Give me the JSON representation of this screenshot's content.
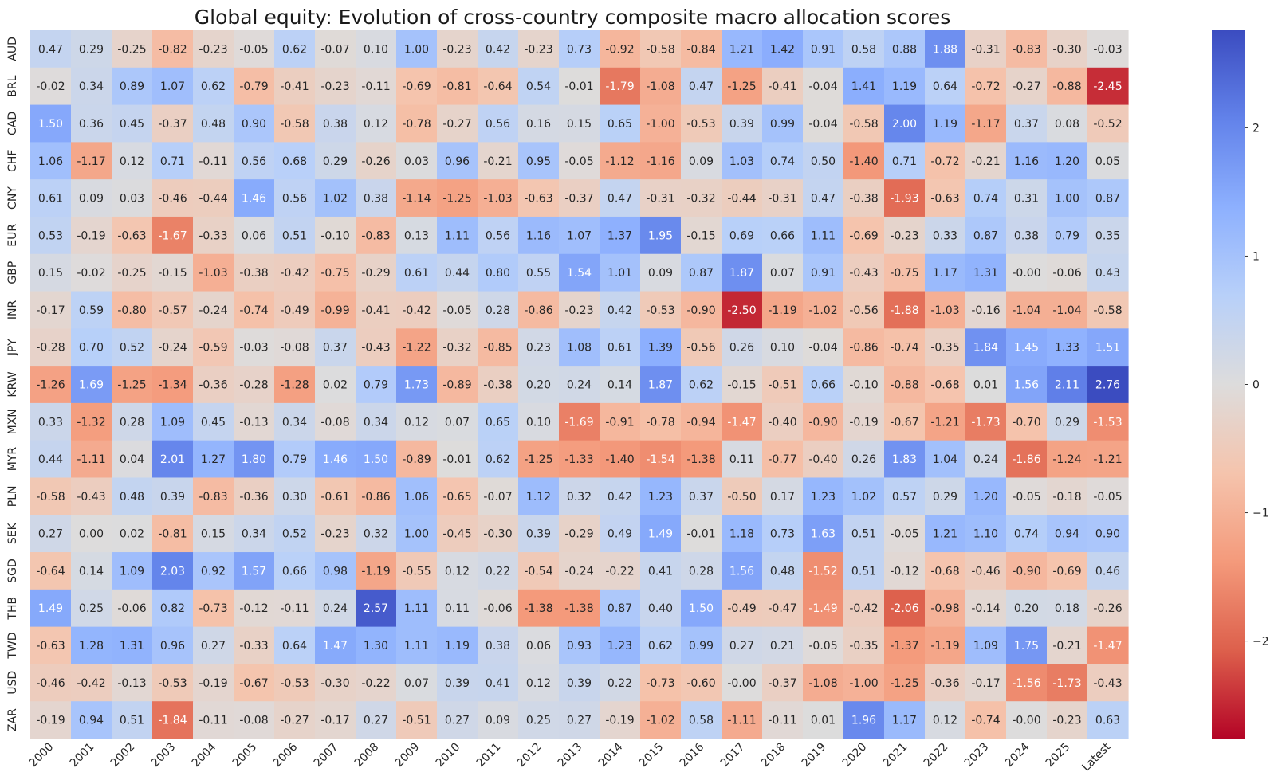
{
  "chart_data": {
    "type": "heatmap",
    "title": "Global equity: Evolution of cross-country composite macro allocation scores",
    "x_categories": [
      "2000",
      "2001",
      "2002",
      "2003",
      "2004",
      "2005",
      "2006",
      "2007",
      "2008",
      "2009",
      "2010",
      "2011",
      "2012",
      "2013",
      "2014",
      "2015",
      "2016",
      "2017",
      "2018",
      "2019",
      "2020",
      "2021",
      "2022",
      "2023",
      "2024",
      "2025",
      "Latest"
    ],
    "y_categories": [
      "AUD",
      "BRL",
      "CAD",
      "CHF",
      "CNY",
      "EUR",
      "GBP",
      "INR",
      "JPY",
      "KRW",
      "MXN",
      "MYR",
      "PLN",
      "SEK",
      "SGD",
      "THB",
      "TWD",
      "USD",
      "ZAR"
    ],
    "values": [
      [
        "0.47",
        "0.29",
        "-0.25",
        "-0.82",
        "-0.23",
        "-0.05",
        "0.62",
        "-0.07",
        "0.10",
        "1.00",
        "-0.23",
        "0.42",
        "-0.23",
        "0.73",
        "-0.92",
        "-0.58",
        "-0.84",
        "1.21",
        "1.42",
        "0.91",
        "0.58",
        "0.88",
        "1.88",
        "-0.31",
        "-0.83",
        "-0.30",
        "-0.03"
      ],
      [
        "-0.02",
        "0.34",
        "0.89",
        "1.07",
        "0.62",
        "-0.79",
        "-0.41",
        "-0.23",
        "-0.11",
        "-0.69",
        "-0.81",
        "-0.64",
        "0.54",
        "-0.01",
        "-1.79",
        "-1.08",
        "0.47",
        "-1.25",
        "-0.41",
        "-0.04",
        "1.41",
        "1.19",
        "0.64",
        "-0.72",
        "-0.27",
        "-0.88",
        "-2.45"
      ],
      [
        "1.50",
        "0.36",
        "0.45",
        "-0.37",
        "0.48",
        "0.90",
        "-0.58",
        "0.38",
        "0.12",
        "-0.78",
        "-0.27",
        "0.56",
        "0.16",
        "0.15",
        "0.65",
        "-1.00",
        "-0.53",
        "0.39",
        "0.99",
        "-0.04",
        "-0.58",
        "2.00",
        "1.19",
        "-1.17",
        "0.37",
        "0.08",
        "-0.52"
      ],
      [
        "1.06",
        "-1.17",
        "0.12",
        "0.71",
        "-0.11",
        "0.56",
        "0.68",
        "0.29",
        "-0.26",
        "0.03",
        "0.96",
        "-0.21",
        "0.95",
        "-0.05",
        "-1.12",
        "-1.16",
        "0.09",
        "1.03",
        "0.74",
        "0.50",
        "-1.40",
        "0.71",
        "-0.72",
        "-0.21",
        "1.16",
        "1.20",
        "0.05"
      ],
      [
        "0.61",
        "0.09",
        "0.03",
        "-0.46",
        "-0.44",
        "1.46",
        "0.56",
        "1.02",
        "0.38",
        "-1.14",
        "-1.25",
        "-1.03",
        "-0.63",
        "-0.37",
        "0.47",
        "-0.31",
        "-0.32",
        "-0.44",
        "-0.31",
        "0.47",
        "-0.38",
        "-1.93",
        "-0.63",
        "0.74",
        "0.31",
        "1.00",
        "0.87"
      ],
      [
        "0.53",
        "-0.19",
        "-0.63",
        "-1.67",
        "-0.33",
        "0.06",
        "0.51",
        "-0.10",
        "-0.83",
        "0.13",
        "1.11",
        "0.56",
        "1.16",
        "1.07",
        "1.37",
        "1.95",
        "-0.15",
        "0.69",
        "0.66",
        "1.11",
        "-0.69",
        "-0.23",
        "0.33",
        "0.87",
        "0.38",
        "0.79",
        "0.35"
      ],
      [
        "0.15",
        "-0.02",
        "-0.25",
        "-0.15",
        "-1.03",
        "-0.38",
        "-0.42",
        "-0.75",
        "-0.29",
        "0.61",
        "0.44",
        "0.80",
        "0.55",
        "1.54",
        "1.01",
        "0.09",
        "0.87",
        "1.87",
        "0.07",
        "0.91",
        "-0.43",
        "-0.75",
        "1.17",
        "1.31",
        "-0.00",
        "-0.06",
        "0.43"
      ],
      [
        "-0.17",
        "0.59",
        "-0.80",
        "-0.57",
        "-0.24",
        "-0.74",
        "-0.49",
        "-0.99",
        "-0.41",
        "-0.42",
        "-0.05",
        "0.28",
        "-0.86",
        "-0.23",
        "0.42",
        "-0.53",
        "-0.90",
        "-2.50",
        "-1.19",
        "-1.02",
        "-0.56",
        "-1.88",
        "-1.03",
        "-0.16",
        "-1.04",
        "-1.04",
        "-0.58"
      ],
      [
        "-0.28",
        "0.70",
        "0.52",
        "-0.24",
        "-0.59",
        "-0.03",
        "-0.08",
        "0.37",
        "-0.43",
        "-1.22",
        "-0.32",
        "-0.85",
        "0.23",
        "1.08",
        "0.61",
        "1.39",
        "-0.56",
        "0.26",
        "0.10",
        "-0.04",
        "-0.86",
        "-0.74",
        "-0.35",
        "1.84",
        "1.45",
        "1.33",
        "1.51"
      ],
      [
        "-1.26",
        "1.69",
        "-1.25",
        "-1.34",
        "-0.36",
        "-0.28",
        "-1.28",
        "0.02",
        "0.79",
        "1.73",
        "-0.89",
        "-0.38",
        "0.20",
        "0.24",
        "0.14",
        "1.87",
        "0.62",
        "-0.15",
        "-0.51",
        "0.66",
        "-0.10",
        "-0.88",
        "-0.68",
        "0.01",
        "1.56",
        "2.11",
        "2.76"
      ],
      [
        "0.33",
        "-1.32",
        "0.28",
        "1.09",
        "0.45",
        "-0.13",
        "0.34",
        "-0.08",
        "0.34",
        "0.12",
        "0.07",
        "0.65",
        "0.10",
        "-1.69",
        "-0.91",
        "-0.78",
        "-0.94",
        "-1.47",
        "-0.40",
        "-0.90",
        "-0.19",
        "-0.67",
        "-1.21",
        "-1.73",
        "-0.70",
        "0.29",
        "-1.53"
      ],
      [
        "0.44",
        "-1.11",
        "0.04",
        "2.01",
        "1.27",
        "1.80",
        "0.79",
        "1.46",
        "1.50",
        "-0.89",
        "-0.01",
        "0.62",
        "-1.25",
        "-1.33",
        "-1.40",
        "-1.54",
        "-1.38",
        "0.11",
        "-0.77",
        "-0.40",
        "0.26",
        "1.83",
        "1.04",
        "0.24",
        "-1.86",
        "-1.24",
        "-1.21"
      ],
      [
        "-0.58",
        "-0.43",
        "0.48",
        "0.39",
        "-0.83",
        "-0.36",
        "0.30",
        "-0.61",
        "-0.86",
        "1.06",
        "-0.65",
        "-0.07",
        "1.12",
        "0.32",
        "0.42",
        "1.23",
        "0.37",
        "-0.50",
        "0.17",
        "1.23",
        "1.02",
        "0.57",
        "0.29",
        "1.20",
        "-0.05",
        "-0.18",
        "-0.05"
      ],
      [
        "0.27",
        "0.00",
        "0.02",
        "-0.81",
        "0.15",
        "0.34",
        "0.52",
        "-0.23",
        "0.32",
        "1.00",
        "-0.45",
        "-0.30",
        "0.39",
        "-0.29",
        "0.49",
        "1.49",
        "-0.01",
        "1.18",
        "0.73",
        "1.63",
        "0.51",
        "-0.05",
        "1.21",
        "1.10",
        "0.74",
        "0.94",
        "0.90"
      ],
      [
        "-0.64",
        "0.14",
        "1.09",
        "2.03",
        "0.92",
        "1.57",
        "0.66",
        "0.98",
        "-1.19",
        "-0.55",
        "0.12",
        "0.22",
        "-0.54",
        "-0.24",
        "-0.22",
        "0.41",
        "0.28",
        "1.56",
        "0.48",
        "-1.52",
        "0.51",
        "-0.12",
        "-0.68",
        "-0.46",
        "-0.90",
        "-0.69",
        "0.46"
      ],
      [
        "1.49",
        "0.25",
        "-0.06",
        "0.82",
        "-0.73",
        "-0.12",
        "-0.11",
        "0.24",
        "2.57",
        "1.11",
        "0.11",
        "-0.06",
        "-1.38",
        "-1.38",
        "0.87",
        "0.40",
        "1.50",
        "-0.49",
        "-0.47",
        "-1.49",
        "-0.42",
        "-2.06",
        "-0.98",
        "-0.14",
        "0.20",
        "0.18",
        "-0.26"
      ],
      [
        "-0.63",
        "1.28",
        "1.31",
        "0.96",
        "0.27",
        "-0.33",
        "0.64",
        "1.47",
        "1.30",
        "1.11",
        "1.19",
        "0.38",
        "0.06",
        "0.93",
        "1.23",
        "0.62",
        "0.99",
        "0.27",
        "0.21",
        "-0.05",
        "-0.35",
        "-1.37",
        "-1.19",
        "1.09",
        "1.75",
        "-0.21",
        "-1.47"
      ],
      [
        "-0.46",
        "-0.42",
        "-0.13",
        "-0.53",
        "-0.19",
        "-0.67",
        "-0.53",
        "-0.30",
        "-0.22",
        "0.07",
        "0.39",
        "0.41",
        "0.12",
        "0.39",
        "0.22",
        "-0.73",
        "-0.60",
        "-0.00",
        "-0.37",
        "-1.08",
        "-1.00",
        "-1.25",
        "-0.36",
        "-0.17",
        "-1.56",
        "-1.73",
        "-0.43"
      ],
      [
        "-0.19",
        "0.94",
        "0.51",
        "-1.84",
        "-0.11",
        "-0.08",
        "-0.27",
        "-0.17",
        "0.27",
        "-0.51",
        "0.27",
        "0.09",
        "0.25",
        "0.27",
        "-0.19",
        "-1.02",
        "0.58",
        "-1.11",
        "-0.11",
        "0.01",
        "1.96",
        "1.17",
        "0.12",
        "-0.74",
        "-0.00",
        "-0.23",
        "0.63"
      ]
    ],
    "color_scale": {
      "colormap": "coolwarm reversed (red = negative, blue = positive)",
      "vmin": -2.76,
      "vmax": 2.76,
      "center": 0
    },
    "colorbar_ticks": [
      "2",
      "1",
      "0",
      "−1",
      "−2"
    ],
    "colors": {
      "neg_extreme": "#b40426",
      "neutral": "#dddcdc",
      "pos_extreme": "#3b4cc0"
    },
    "grid": false,
    "legend": "colorbar-right"
  }
}
